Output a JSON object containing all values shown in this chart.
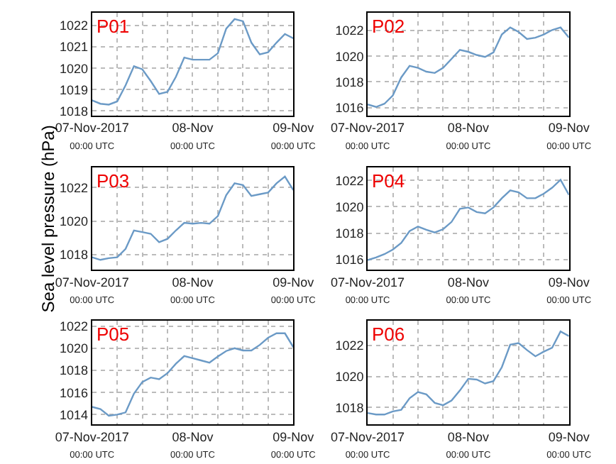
{
  "chart_data": [
    {
      "type": "line",
      "title": "P01",
      "color": "#6b9ac6",
      "grid": true,
      "x": [
        "2017-11-07T00:00",
        "2017-11-07T02:00",
        "2017-11-07T04:00",
        "2017-11-07T06:00",
        "2017-11-07T08:00",
        "2017-11-07T10:00",
        "2017-11-07T12:00",
        "2017-11-07T14:00",
        "2017-11-07T16:00",
        "2017-11-07T18:00",
        "2017-11-07T20:00",
        "2017-11-07T22:00",
        "2017-11-08T00:00",
        "2017-11-08T02:00",
        "2017-11-08T04:00",
        "2017-11-08T06:00",
        "2017-11-08T08:00",
        "2017-11-08T10:00",
        "2017-11-08T12:00",
        "2017-11-08T14:00",
        "2017-11-08T16:00",
        "2017-11-08T18:00",
        "2017-11-08T20:00",
        "2017-11-08T22:00",
        "2017-11-09T00:00"
      ],
      "values": [
        1018.5,
        1018.34,
        1018.3,
        1018.45,
        1019.2,
        1020.1,
        1019.95,
        1019.4,
        1018.8,
        1018.9,
        1019.6,
        1020.5,
        1020.4,
        1020.4,
        1020.4,
        1020.7,
        1021.85,
        1022.3,
        1022.2,
        1021.2,
        1020.65,
        1020.75,
        1021.2,
        1021.6,
        1021.4
      ],
      "xlim": [
        "2017-11-07T00:00",
        "2017-11-09T00:00"
      ],
      "ylim": [
        1017.8,
        1022.6
      ],
      "yticks": [
        1018,
        1019,
        1020,
        1021,
        1022
      ],
      "xticks": [
        {
          "value": "2017-11-07T00:00",
          "label": "07-Nov-2017\n00:00 UTC"
        },
        {
          "value": "2017-11-07T06:00",
          "label": null
        },
        {
          "value": "2017-11-07T12:00",
          "label": null
        },
        {
          "value": "2017-11-07T18:00",
          "label": null
        },
        {
          "value": "2017-11-08T00:00",
          "label": "08-Nov\n00:00 UTC"
        },
        {
          "value": "2017-11-08T06:00",
          "label": null
        },
        {
          "value": "2017-11-08T12:00",
          "label": null
        },
        {
          "value": "2017-11-08T18:00",
          "label": null
        },
        {
          "value": "2017-11-09T00:00",
          "label": "09-Nov\n00:00 UTC"
        }
      ]
    },
    {
      "type": "line",
      "title": "P02",
      "color": "#6b9ac6",
      "grid": true,
      "x": [
        "2017-11-07T00:00",
        "2017-11-07T02:00",
        "2017-11-07T04:00",
        "2017-11-07T06:00",
        "2017-11-07T08:00",
        "2017-11-07T10:00",
        "2017-11-07T12:00",
        "2017-11-07T14:00",
        "2017-11-07T16:00",
        "2017-11-07T18:00",
        "2017-11-07T20:00",
        "2017-11-07T22:00",
        "2017-11-08T00:00",
        "2017-11-08T02:00",
        "2017-11-08T04:00",
        "2017-11-08T06:00",
        "2017-11-08T08:00",
        "2017-11-08T10:00",
        "2017-11-08T12:00",
        "2017-11-08T14:00",
        "2017-11-08T16:00",
        "2017-11-08T18:00",
        "2017-11-08T20:00",
        "2017-11-08T22:00",
        "2017-11-09T00:00"
      ],
      "values": [
        1016.25,
        1016.05,
        1016.3,
        1016.95,
        1018.35,
        1019.25,
        1019.1,
        1018.8,
        1018.7,
        1019.1,
        1019.8,
        1020.5,
        1020.35,
        1020.1,
        1019.95,
        1020.3,
        1021.7,
        1022.25,
        1021.9,
        1021.35,
        1021.45,
        1021.7,
        1022.05,
        1022.25,
        1021.45
      ],
      "xlim": [
        "2017-11-07T00:00",
        "2017-11-09T00:00"
      ],
      "ylim": [
        1015.4,
        1023.4
      ],
      "yticks": [
        1016,
        1018,
        1020,
        1022
      ],
      "xticks": [
        {
          "value": "2017-11-07T00:00",
          "label": "07-Nov-2017\n00:00 UTC"
        },
        {
          "value": "2017-11-07T06:00",
          "label": null
        },
        {
          "value": "2017-11-07T12:00",
          "label": null
        },
        {
          "value": "2017-11-07T18:00",
          "label": null
        },
        {
          "value": "2017-11-08T00:00",
          "label": "08-Nov\n00:00 UTC"
        },
        {
          "value": "2017-11-08T06:00",
          "label": null
        },
        {
          "value": "2017-11-08T12:00",
          "label": null
        },
        {
          "value": "2017-11-08T18:00",
          "label": null
        },
        {
          "value": "2017-11-09T00:00",
          "label": "09-Nov\n00:00 UTC"
        }
      ]
    },
    {
      "type": "line",
      "title": "P03",
      "ylabel": "Sea level pressure (hPa)",
      "color": "#6b9ac6",
      "grid": true,
      "x": [
        "2017-11-07T00:00",
        "2017-11-07T02:00",
        "2017-11-07T04:00",
        "2017-11-07T06:00",
        "2017-11-07T08:00",
        "2017-11-07T10:00",
        "2017-11-07T12:00",
        "2017-11-07T14:00",
        "2017-11-07T16:00",
        "2017-11-07T18:00",
        "2017-11-07T20:00",
        "2017-11-07T22:00",
        "2017-11-08T00:00",
        "2017-11-08T02:00",
        "2017-11-08T04:00",
        "2017-11-08T06:00",
        "2017-11-08T08:00",
        "2017-11-08T10:00",
        "2017-11-08T12:00",
        "2017-11-08T14:00",
        "2017-11-08T16:00",
        "2017-11-08T18:00",
        "2017-11-08T20:00",
        "2017-11-08T22:00",
        "2017-11-09T00:00"
      ],
      "values": [
        1017.85,
        1017.7,
        1017.8,
        1017.85,
        1018.35,
        1019.45,
        1019.35,
        1019.25,
        1018.75,
        1018.95,
        1019.45,
        1019.9,
        1019.85,
        1019.9,
        1019.85,
        1020.3,
        1021.55,
        1022.25,
        1022.15,
        1021.5,
        1021.6,
        1021.7,
        1022.25,
        1022.65,
        1021.85
      ],
      "xlim": [
        "2017-11-07T00:00",
        "2017-11-09T00:00"
      ],
      "ylim": [
        1017.1,
        1023.2
      ],
      "yticks": [
        1018,
        1020,
        1022
      ],
      "xticks": [
        {
          "value": "2017-11-07T00:00",
          "label": "07-Nov-2017\n00:00 UTC"
        },
        {
          "value": "2017-11-07T06:00",
          "label": null
        },
        {
          "value": "2017-11-07T12:00",
          "label": null
        },
        {
          "value": "2017-11-07T18:00",
          "label": null
        },
        {
          "value": "2017-11-08T00:00",
          "label": "08-Nov\n00:00 UTC"
        },
        {
          "value": "2017-11-08T06:00",
          "label": null
        },
        {
          "value": "2017-11-08T12:00",
          "label": null
        },
        {
          "value": "2017-11-08T18:00",
          "label": null
        },
        {
          "value": "2017-11-09T00:00",
          "label": "09-Nov\n00:00 UTC"
        }
      ]
    },
    {
      "type": "line",
      "title": "P04",
      "color": "#6b9ac6",
      "grid": true,
      "x": [
        "2017-11-07T00:00",
        "2017-11-07T02:00",
        "2017-11-07T04:00",
        "2017-11-07T06:00",
        "2017-11-07T08:00",
        "2017-11-07T10:00",
        "2017-11-07T12:00",
        "2017-11-07T14:00",
        "2017-11-07T16:00",
        "2017-11-07T18:00",
        "2017-11-07T20:00",
        "2017-11-07T22:00",
        "2017-11-08T00:00",
        "2017-11-08T02:00",
        "2017-11-08T04:00",
        "2017-11-08T06:00",
        "2017-11-08T08:00",
        "2017-11-08T10:00",
        "2017-11-08T12:00",
        "2017-11-08T14:00",
        "2017-11-08T16:00",
        "2017-11-08T18:00",
        "2017-11-08T20:00",
        "2017-11-08T22:00",
        "2017-11-09T00:00"
      ],
      "values": [
        1015.95,
        1016.15,
        1016.4,
        1016.75,
        1017.25,
        1018.15,
        1018.5,
        1018.25,
        1018.05,
        1018.3,
        1018.85,
        1019.85,
        1019.95,
        1019.6,
        1019.5,
        1019.95,
        1020.65,
        1021.25,
        1021.1,
        1020.65,
        1020.65,
        1021.0,
        1021.45,
        1022.05,
        1020.9
      ],
      "xlim": [
        "2017-11-07T00:00",
        "2017-11-09T00:00"
      ],
      "ylim": [
        1015.2,
        1023.0
      ],
      "yticks": [
        1016,
        1018,
        1020,
        1022
      ],
      "xticks": [
        {
          "value": "2017-11-07T00:00",
          "label": "07-Nov-2017\n00:00 UTC"
        },
        {
          "value": "2017-11-07T06:00",
          "label": null
        },
        {
          "value": "2017-11-07T12:00",
          "label": null
        },
        {
          "value": "2017-11-07T18:00",
          "label": null
        },
        {
          "value": "2017-11-08T00:00",
          "label": "08-Nov\n00:00 UTC"
        },
        {
          "value": "2017-11-08T06:00",
          "label": null
        },
        {
          "value": "2017-11-08T12:00",
          "label": null
        },
        {
          "value": "2017-11-08T18:00",
          "label": null
        },
        {
          "value": "2017-11-09T00:00",
          "label": "09-Nov\n00:00 UTC"
        }
      ]
    },
    {
      "type": "line",
      "title": "P05",
      "color": "#6b9ac6",
      "grid": true,
      "x": [
        "2017-11-07T00:00",
        "2017-11-07T02:00",
        "2017-11-07T04:00",
        "2017-11-07T06:00",
        "2017-11-07T08:00",
        "2017-11-07T10:00",
        "2017-11-07T12:00",
        "2017-11-07T14:00",
        "2017-11-07T16:00",
        "2017-11-07T18:00",
        "2017-11-07T20:00",
        "2017-11-07T22:00",
        "2017-11-08T00:00",
        "2017-11-08T02:00",
        "2017-11-08T04:00",
        "2017-11-08T06:00",
        "2017-11-08T08:00",
        "2017-11-08T10:00",
        "2017-11-08T12:00",
        "2017-11-08T14:00",
        "2017-11-08T16:00",
        "2017-11-08T18:00",
        "2017-11-08T20:00",
        "2017-11-08T22:00",
        "2017-11-09T00:00"
      ],
      "values": [
        1014.7,
        1014.5,
        1013.9,
        1014.0,
        1014.2,
        1015.9,
        1016.95,
        1017.35,
        1017.2,
        1017.75,
        1018.6,
        1019.3,
        1019.1,
        1018.9,
        1018.7,
        1019.25,
        1019.75,
        1020.0,
        1019.8,
        1019.8,
        1020.3,
        1020.95,
        1021.35,
        1021.35,
        1020.1
      ],
      "xlim": [
        "2017-11-07T00:00",
        "2017-11-09T00:00"
      ],
      "ylim": [
        1013.1,
        1022.5
      ],
      "yticks": [
        1014,
        1016,
        1018,
        1020,
        1022
      ],
      "xticks": [
        {
          "value": "2017-11-07T00:00",
          "label": "07-Nov-2017\n00:00 UTC"
        },
        {
          "value": "2017-11-07T06:00",
          "label": null
        },
        {
          "value": "2017-11-07T12:00",
          "label": null
        },
        {
          "value": "2017-11-07T18:00",
          "label": null
        },
        {
          "value": "2017-11-08T00:00",
          "label": "08-Nov\n00:00 UTC"
        },
        {
          "value": "2017-11-08T06:00",
          "label": null
        },
        {
          "value": "2017-11-08T12:00",
          "label": null
        },
        {
          "value": "2017-11-08T18:00",
          "label": null
        },
        {
          "value": "2017-11-09T00:00",
          "label": "09-Nov\n00:00 UTC"
        }
      ]
    },
    {
      "type": "line",
      "title": "P06",
      "color": "#6b9ac6",
      "grid": true,
      "x": [
        "2017-11-07T00:00",
        "2017-11-07T02:00",
        "2017-11-07T04:00",
        "2017-11-07T06:00",
        "2017-11-07T08:00",
        "2017-11-07T10:00",
        "2017-11-07T12:00",
        "2017-11-07T14:00",
        "2017-11-07T16:00",
        "2017-11-07T18:00",
        "2017-11-07T20:00",
        "2017-11-07T22:00",
        "2017-11-08T00:00",
        "2017-11-08T02:00",
        "2017-11-08T04:00",
        "2017-11-08T06:00",
        "2017-11-08T08:00",
        "2017-11-08T10:00",
        "2017-11-08T12:00",
        "2017-11-08T14:00",
        "2017-11-08T16:00",
        "2017-11-08T18:00",
        "2017-11-08T20:00",
        "2017-11-08T22:00",
        "2017-11-09T00:00"
      ],
      "values": [
        1017.65,
        1017.55,
        1017.55,
        1017.75,
        1017.85,
        1018.6,
        1019.0,
        1018.85,
        1018.3,
        1018.15,
        1018.45,
        1019.1,
        1019.85,
        1019.8,
        1019.55,
        1019.7,
        1020.6,
        1022.05,
        1022.15,
        1021.7,
        1021.3,
        1021.6,
        1021.85,
        1022.9,
        1022.6
      ],
      "xlim": [
        "2017-11-07T00:00",
        "2017-11-09T00:00"
      ],
      "ylim": [
        1016.9,
        1023.6
      ],
      "yticks": [
        1018,
        1020,
        1022
      ],
      "xticks": [
        {
          "value": "2017-11-07T00:00",
          "label": "07-Nov-2017\n00:00 UTC"
        },
        {
          "value": "2017-11-07T06:00",
          "label": null
        },
        {
          "value": "2017-11-07T12:00",
          "label": null
        },
        {
          "value": "2017-11-07T18:00",
          "label": null
        },
        {
          "value": "2017-11-08T00:00",
          "label": "08-Nov\n00:00 UTC"
        },
        {
          "value": "2017-11-08T06:00",
          "label": null
        },
        {
          "value": "2017-11-08T12:00",
          "label": null
        },
        {
          "value": "2017-11-08T18:00",
          "label": null
        },
        {
          "value": "2017-11-09T00:00",
          "label": "09-Nov\n00:00 UTC"
        }
      ]
    }
  ]
}
